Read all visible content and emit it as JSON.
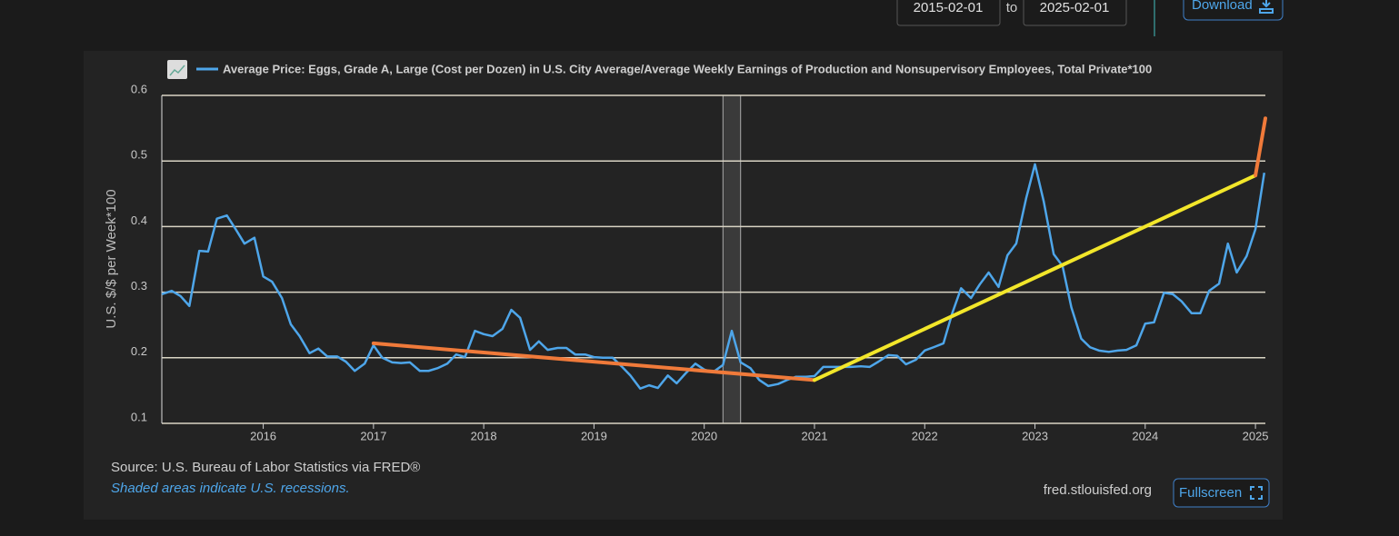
{
  "controls": {
    "start_date": "2015-02-01",
    "to": "to",
    "end_date": "2025-02-01",
    "download": "Download",
    "fullscreen": "Fullscreen"
  },
  "chart_data": {
    "type": "line",
    "ylabel": "U.S. $/$ per Week*100",
    "source": "Source: U.S. Bureau of Labor Statistics via FRED®",
    "note": "Shaded areas indicate U.S. recessions.",
    "site": "fred.stlouisfed.org",
    "xlim": [
      2015.08,
      2025.09
    ],
    "xticks": [
      2016,
      2017,
      2018,
      2019,
      2020,
      2021,
      2022,
      2023,
      2024,
      2025
    ],
    "ylim": [
      0.1,
      0.6
    ],
    "yticks": [
      0.1,
      0.2,
      0.3,
      0.4,
      0.5,
      0.6
    ],
    "grid": true,
    "recessions": [
      [
        2020.17,
        2020.33
      ]
    ],
    "x": [
      2015.08,
      2015.17,
      2015.25,
      2015.33,
      2015.42,
      2015.5,
      2015.58,
      2015.67,
      2015.75,
      2015.83,
      2015.92,
      2016,
      2016.08,
      2016.17,
      2016.25,
      2016.33,
      2016.42,
      2016.5,
      2016.58,
      2016.67,
      2016.75,
      2016.83,
      2016.92,
      2017,
      2017.08,
      2017.17,
      2017.25,
      2017.33,
      2017.42,
      2017.5,
      2017.58,
      2017.67,
      2017.75,
      2017.83,
      2017.92,
      2018,
      2018.08,
      2018.17,
      2018.25,
      2018.33,
      2018.42,
      2018.5,
      2018.58,
      2018.67,
      2018.75,
      2018.83,
      2018.92,
      2019,
      2019.08,
      2019.17,
      2019.25,
      2019.33,
      2019.42,
      2019.5,
      2019.58,
      2019.67,
      2019.75,
      2019.83,
      2019.92,
      2020,
      2020.08,
      2020.17,
      2020.25,
      2020.33,
      2020.42,
      2020.5,
      2020.58,
      2020.67,
      2020.75,
      2020.83,
      2020.92,
      2021,
      2021.08,
      2021.17,
      2021.25,
      2021.33,
      2021.42,
      2021.5,
      2021.58,
      2021.67,
      2021.75,
      2021.83,
      2021.92,
      2022,
      2022.08,
      2022.17,
      2022.25,
      2022.33,
      2022.42,
      2022.5,
      2022.58,
      2022.67,
      2022.75,
      2022.83,
      2022.92,
      2023,
      2023.08,
      2023.17,
      2023.25,
      2023.33,
      2023.42,
      2023.5,
      2023.58,
      2023.67,
      2023.75,
      2023.83,
      2023.92,
      2024,
      2024.08,
      2024.17,
      2024.25,
      2024.33,
      2024.42,
      2024.5,
      2024.58,
      2024.67,
      2024.75,
      2024.83,
      2024.92,
      2025,
      2025.08
    ],
    "series": [
      {
        "name": "Average Price: Eggs, Grade A, Large (Cost per Dozen) in U.S. City Average/Average Weekly Earnings of Production and Nonsupervisory Employees, Total Private*100",
        "color": "#4ea6ea",
        "values": [
          0.297,
          0.302,
          0.294,
          0.279,
          0.363,
          0.362,
          0.412,
          0.417,
          0.396,
          0.374,
          0.383,
          0.324,
          0.316,
          0.291,
          0.251,
          0.233,
          0.207,
          0.214,
          0.202,
          0.202,
          0.194,
          0.18,
          0.191,
          0.219,
          0.2,
          0.193,
          0.192,
          0.193,
          0.18,
          0.18,
          0.184,
          0.191,
          0.205,
          0.201,
          0.241,
          0.236,
          0.233,
          0.244,
          0.273,
          0.261,
          0.212,
          0.225,
          0.212,
          0.215,
          0.215,
          0.205,
          0.205,
          0.201,
          0.2,
          0.2,
          0.187,
          0.173,
          0.153,
          0.158,
          0.154,
          0.173,
          0.161,
          0.176,
          0.191,
          0.182,
          0.178,
          0.189,
          0.241,
          0.193,
          0.184,
          0.166,
          0.157,
          0.16,
          0.166,
          0.171,
          0.171,
          0.172,
          0.186,
          0.186,
          0.186,
          0.186,
          0.187,
          0.186,
          0.194,
          0.204,
          0.203,
          0.19,
          0.197,
          0.211,
          0.216,
          0.222,
          0.268,
          0.306,
          0.291,
          0.312,
          0.33,
          0.308,
          0.356,
          0.374,
          0.443,
          0.495,
          0.438,
          0.358,
          0.34,
          0.277,
          0.229,
          0.216,
          0.211,
          0.209,
          0.211,
          0.212,
          0.219,
          0.252,
          0.254,
          0.299,
          0.297,
          0.286,
          0.268,
          0.268,
          0.302,
          0.313,
          0.374,
          0.33,
          0.355,
          0.396,
          0.482
        ]
      }
    ],
    "trend_lines": [
      {
        "color": "#f07a3a",
        "x": [
          2017.0,
          2021.0
        ],
        "values": [
          0.222,
          0.166
        ]
      },
      {
        "color": "#f2e62a",
        "x": [
          2021.0,
          2025.0
        ],
        "values": [
          0.166,
          0.478
        ]
      },
      {
        "color": "#f07a3a",
        "x": [
          2025.0,
          2025.09
        ],
        "values": [
          0.478,
          0.565
        ]
      }
    ]
  }
}
